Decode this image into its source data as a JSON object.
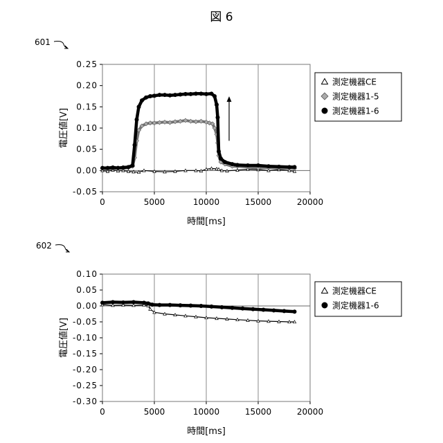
{
  "figure_title": "図 6",
  "chart_data": [
    {
      "panel_label": "601",
      "type": "scatter",
      "xlabel": "時間[ms]",
      "ylabel": "電圧値[V]",
      "xlim": [
        0,
        20000
      ],
      "ylim": [
        -0.05,
        0.25
      ],
      "xticks": [
        0,
        5000,
        10000,
        15000,
        20000
      ],
      "yticks": [
        -0.05,
        0.0,
        0.05,
        0.1,
        0.15,
        0.2,
        0.25
      ],
      "tick_labels_x": [
        "0",
        "5000",
        "10000",
        "15000",
        "20000"
      ],
      "tick_labels_y": [
        "-0.05",
        "0.00",
        "0.05",
        "0.10",
        "0.15",
        "0.20",
        "0.25"
      ],
      "grid": "vertical",
      "legend_position": "right",
      "annotation": "arrow-up",
      "series": [
        {
          "name": "測定機器CE",
          "marker": "triangle-open",
          "x": [
            0,
            500,
            1000,
            1500,
            2000,
            2500,
            3000,
            3500,
            4000,
            5000,
            6000,
            7000,
            8000,
            9000,
            9500,
            10000,
            10500,
            11000,
            11200,
            11500,
            12000,
            13000,
            14000,
            15000,
            16000,
            17000,
            18000,
            18500
          ],
          "y": [
            0.0,
            -0.002,
            0.001,
            -0.001,
            0.0,
            -0.002,
            -0.003,
            -0.004,
            0.0,
            -0.002,
            -0.003,
            -0.002,
            0.0,
            0.0,
            -0.001,
            0.003,
            0.005,
            0.004,
            0.003,
            0.0,
            -0.001,
            0.001,
            0.003,
            0.002,
            0.0,
            0.002,
            0.0,
            -0.002
          ]
        },
        {
          "name": "測定機器1-5",
          "marker": "diamond-gray",
          "x": [
            0,
            500,
            1000,
            1500,
            2000,
            2500,
            2900,
            3100,
            3300,
            3500,
            3800,
            4200,
            4600,
            5000,
            5500,
            6000,
            6500,
            7000,
            7500,
            8000,
            8500,
            9000,
            9500,
            10000,
            10300,
            10600,
            10800,
            11000,
            11100,
            11200,
            11400,
            11800,
            12500,
            13000,
            14000,
            15000,
            16000,
            17000,
            18000,
            18500
          ],
          "y": [
            0.005,
            0.004,
            0.005,
            0.006,
            0.005,
            0.007,
            0.01,
            0.03,
            0.07,
            0.095,
            0.105,
            0.11,
            0.112,
            0.112,
            0.113,
            0.114,
            0.113,
            0.115,
            0.116,
            0.118,
            0.116,
            0.115,
            0.116,
            0.114,
            0.112,
            0.11,
            0.1,
            0.085,
            0.065,
            0.035,
            0.02,
            0.015,
            0.01,
            0.01,
            0.008,
            0.006,
            0.007,
            0.006,
            0.006,
            0.005
          ]
        },
        {
          "name": "測定機器1-6",
          "marker": "circle-filled",
          "x": [
            0,
            500,
            1000,
            1500,
            2000,
            2500,
            2900,
            3100,
            3300,
            3500,
            3800,
            4200,
            4600,
            5000,
            5500,
            6000,
            6500,
            7000,
            7500,
            8000,
            8500,
            9000,
            9500,
            10000,
            10500,
            10800,
            11000,
            11100,
            11200,
            11400,
            11800,
            12500,
            13000,
            14000,
            15000,
            16000,
            17000,
            18000,
            18500
          ],
          "y": [
            0.006,
            0.006,
            0.007,
            0.006,
            0.007,
            0.008,
            0.012,
            0.06,
            0.12,
            0.15,
            0.165,
            0.172,
            0.175,
            0.176,
            0.178,
            0.178,
            0.177,
            0.178,
            0.179,
            0.18,
            0.18,
            0.181,
            0.181,
            0.18,
            0.181,
            0.175,
            0.155,
            0.125,
            0.045,
            0.028,
            0.02,
            0.015,
            0.013,
            0.012,
            0.012,
            0.01,
            0.009,
            0.008,
            0.008
          ]
        }
      ]
    },
    {
      "panel_label": "602",
      "type": "scatter",
      "xlabel": "時間[ms]",
      "ylabel": "電圧値[V]",
      "xlim": [
        0,
        20000
      ],
      "ylim": [
        -0.3,
        0.1
      ],
      "xticks": [
        0,
        5000,
        10000,
        15000,
        20000
      ],
      "yticks": [
        -0.3,
        -0.25,
        -0.2,
        -0.15,
        -0.1,
        -0.05,
        0.0,
        0.05,
        0.1
      ],
      "tick_labels_x": [
        "0",
        "5000",
        "10000",
        "15000",
        "20000"
      ],
      "tick_labels_y": [
        "-0.30",
        "-0.25",
        "-0.20",
        "-0.15",
        "-0.10",
        "-0.05",
        "0.00",
        "0.05",
        "0.10"
      ],
      "grid": "vertical",
      "legend_position": "right",
      "series": [
        {
          "name": "測定機器CE",
          "marker": "triangle-open",
          "x": [
            0,
            1000,
            2000,
            3000,
            4000,
            4400,
            4600,
            5000,
            6000,
            7000,
            8000,
            9000,
            10000,
            11000,
            12000,
            13000,
            14000,
            15000,
            16000,
            17000,
            18000,
            18500
          ],
          "y": [
            0.004,
            0.002,
            0.003,
            0.002,
            0.003,
            0.001,
            -0.01,
            -0.02,
            -0.025,
            -0.028,
            -0.031,
            -0.034,
            -0.037,
            -0.039,
            -0.041,
            -0.043,
            -0.045,
            -0.047,
            -0.048,
            -0.049,
            -0.05,
            -0.05
          ]
        },
        {
          "name": "測定機器1-6",
          "marker": "circle-filled",
          "x": [
            0,
            1000,
            2000,
            3000,
            4000,
            4400,
            4800,
            5500,
            6500,
            7500,
            8500,
            9500,
            10500,
            11500,
            12500,
            13500,
            14500,
            15500,
            16500,
            17500,
            18500
          ],
          "y": [
            0.01,
            0.012,
            0.011,
            0.012,
            0.01,
            0.008,
            0.004,
            0.003,
            0.003,
            0.002,
            0.001,
            0.0,
            -0.002,
            -0.004,
            -0.006,
            -0.008,
            -0.01,
            -0.012,
            -0.014,
            -0.016,
            -0.018
          ]
        }
      ]
    }
  ]
}
